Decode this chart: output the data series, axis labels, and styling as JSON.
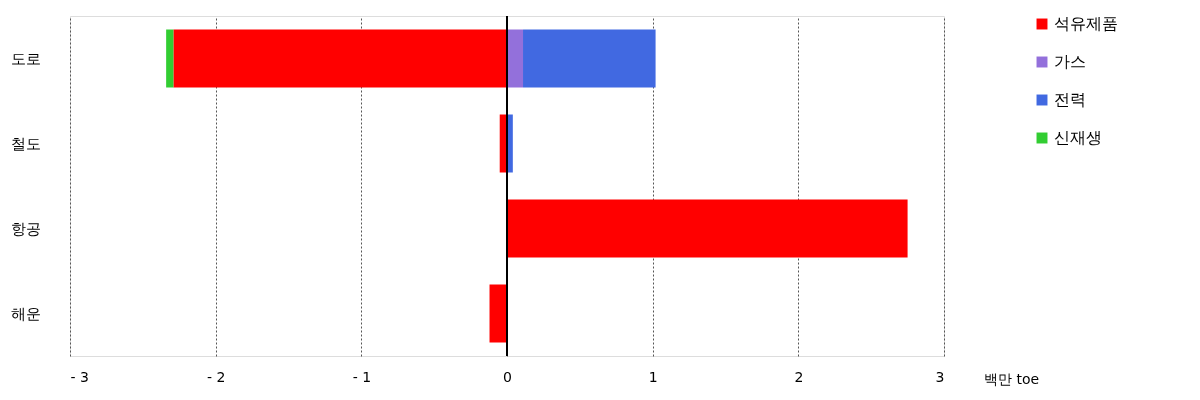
{
  "chart_data": {
    "type": "bar",
    "orientation": "horizontal",
    "stacked": true,
    "categories": [
      "도로",
      "철도",
      "항공",
      "해운"
    ],
    "series": [
      {
        "name": "석유제품",
        "color": "#ff0000",
        "values": [
          -2.29,
          -0.05,
          2.75,
          -0.12
        ]
      },
      {
        "name": "가스",
        "color": "#9370db",
        "values": [
          0.11,
          null,
          null,
          null
        ]
      },
      {
        "name": "전력",
        "color": "#4169e1",
        "values": [
          0.91,
          0.04,
          null,
          null
        ]
      },
      {
        "name": "신재생",
        "color": "#32cd32",
        "values": [
          -0.05,
          null,
          null,
          null
        ]
      }
    ],
    "xlabel": "백만 toe",
    "xlim": [
      -3,
      3
    ],
    "xticks": [
      {
        "value": -3,
        "label": "- 3"
      },
      {
        "value": -2,
        "label": "- 2"
      },
      {
        "value": -1,
        "label": "- 1"
      },
      0,
      1,
      2,
      3
    ],
    "grid": "x",
    "legend": "right"
  }
}
